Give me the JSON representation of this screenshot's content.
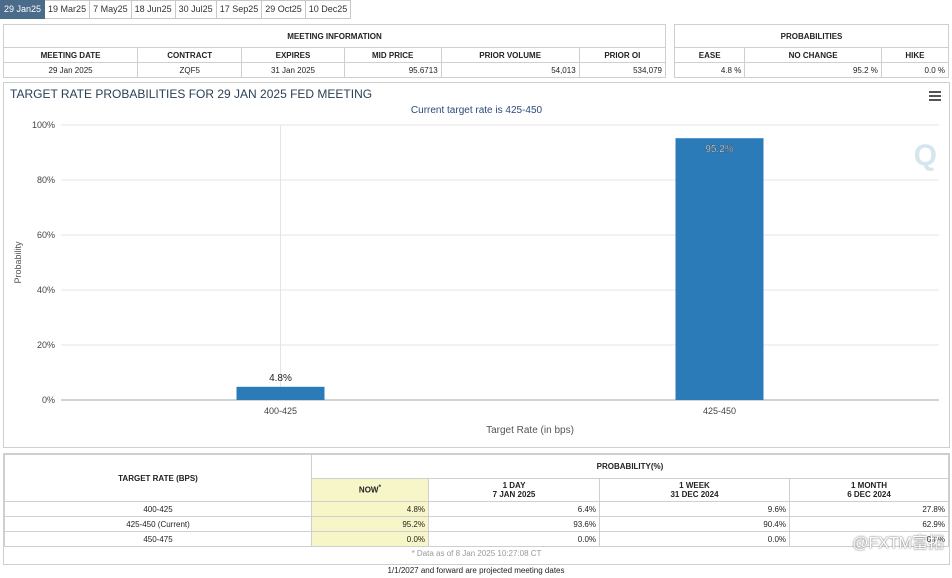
{
  "tabs": [
    "29 Jan25",
    "19 Mar25",
    "7 May25",
    "18 Jun25",
    "30 Jul25",
    "17 Sep25",
    "29 Oct25",
    "10 Dec25"
  ],
  "active_tab": 0,
  "meeting_info": {
    "title": "MEETING INFORMATION",
    "headers": [
      "MEETING DATE",
      "CONTRACT",
      "EXPIRES",
      "MID PRICE",
      "PRIOR VOLUME",
      "PRIOR OI"
    ],
    "values": [
      "29 Jan 2025",
      "ZQF5",
      "31 Jan 2025",
      "95.6713",
      "54,013",
      "534,079"
    ]
  },
  "probabilities": {
    "title": "PROBABILITIES",
    "headers": [
      "EASE",
      "NO CHANGE",
      "HIKE"
    ],
    "values": [
      "4.8 %",
      "95.2 %",
      "0.0 %"
    ]
  },
  "chart": {
    "title": "TARGET RATE PROBABILITIES FOR 29 JAN 2025 FED MEETING",
    "subtitle": "Current target rate is 425-450",
    "menu_icon": "hamburger-menu-icon",
    "watermark_icon": "q-logo-icon",
    "bar_color": "#2b7bb9"
  },
  "chart_data": {
    "type": "bar",
    "title": "TARGET RATE PROBABILITIES FOR 29 JAN 2025 FED MEETING",
    "subtitle": "Current target rate is 425-450",
    "categories": [
      "400-425",
      "425-450"
    ],
    "values": [
      4.8,
      95.2
    ],
    "data_labels": [
      "4.8%",
      "95.2%"
    ],
    "xlabel": "Target Rate (in bps)",
    "ylabel": "Probability",
    "ylim": [
      0,
      100
    ],
    "yticks": [
      "0%",
      "20%",
      "40%",
      "60%",
      "80%",
      "100%"
    ],
    "grid": true
  },
  "bottom_table": {
    "target_header": "TARGET RATE (BPS)",
    "prob_header": "PROBABILITY(%)",
    "col_now": "NOW",
    "col_now_mark": "*",
    "col_1day": [
      "1 DAY",
      "7 JAN 2025"
    ],
    "col_1week": [
      "1 WEEK",
      "31 DEC 2024"
    ],
    "col_1month": [
      "1 MONTH",
      "6 DEC 2024"
    ],
    "rows": [
      {
        "rate": "400-425",
        "now": "4.8%",
        "day": "6.4%",
        "week": "9.6%",
        "month": "27.8%"
      },
      {
        "rate": "425-450 (Current)",
        "now": "95.2%",
        "day": "93.6%",
        "week": "90.4%",
        "month": "62.9%"
      },
      {
        "rate": "450-475",
        "now": "0.0%",
        "day": "0.0%",
        "week": "0.0%",
        "month": "0.0%"
      }
    ],
    "now_highlight": "#f6f6c8",
    "data_note": "* Data as of 8 Jan 2025 10:27:08 CT",
    "footer": "1/1/2027 and forward are projected meeting dates"
  },
  "watermark": "@FXTM富拓"
}
